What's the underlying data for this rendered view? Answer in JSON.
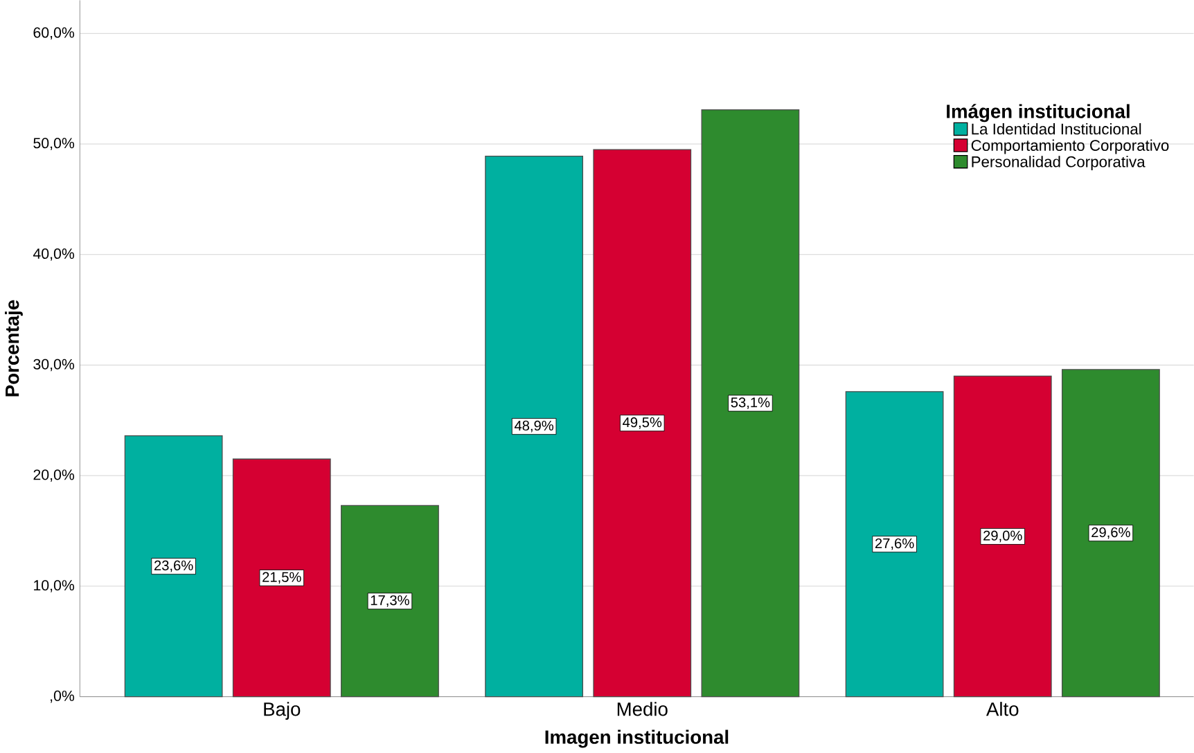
{
  "chart_data": {
    "type": "bar",
    "categories": [
      "Bajo",
      "Medio",
      "Alto"
    ],
    "xlabel": "Imagen institucional",
    "ylabel": "Porcentaje",
    "legend_title": "Imágen institucional",
    "series": [
      {
        "name": "La Identidad Institucional",
        "color": "#00b0a0",
        "values": [
          23.6,
          48.9,
          27.6
        ],
        "value_labels": [
          "23,6%",
          "48,9%",
          "27,6%"
        ]
      },
      {
        "name": "Comportamiento Corporativo",
        "color": "#d50032",
        "values": [
          21.5,
          49.5,
          29.0
        ],
        "value_labels": [
          "21,5%",
          "49,5%",
          "29,0%"
        ]
      },
      {
        "name": "Personalidad Corporativa",
        "color": "#2e8b2e",
        "values": [
          17.3,
          53.1,
          29.6
        ],
        "value_labels": [
          "17,3%",
          "53,1%",
          "29,6%"
        ]
      }
    ],
    "ylim": [
      0,
      63
    ],
    "yticks": [
      {
        "value": 0,
        "label": ",0%"
      },
      {
        "value": 10,
        "label": "10,0%"
      },
      {
        "value": 20,
        "label": "20,0%"
      },
      {
        "value": 30,
        "label": "30,0%"
      },
      {
        "value": 40,
        "label": "40,0%"
      },
      {
        "value": 50,
        "label": "50,0%"
      },
      {
        "value": 60,
        "label": "60,0%"
      }
    ],
    "grid": "y",
    "legend": "right"
  }
}
